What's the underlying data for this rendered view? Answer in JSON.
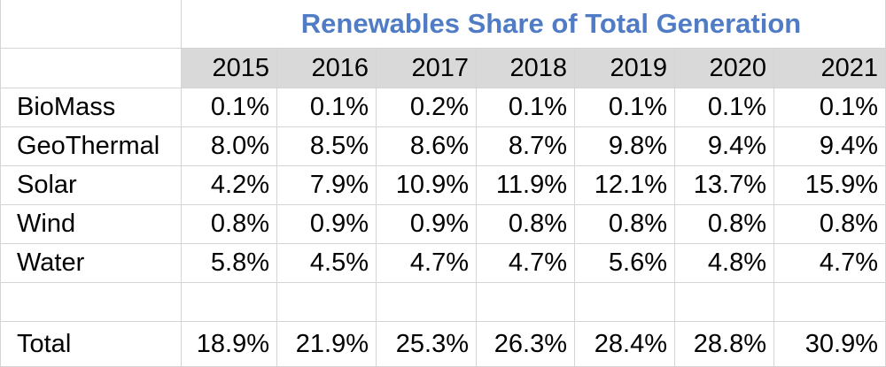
{
  "table": {
    "title": "Renewables Share of Total Generation",
    "columns": [
      "2015",
      "2016",
      "2017",
      "2018",
      "2019",
      "2020",
      "2021"
    ],
    "rows": [
      {
        "label": "BioMass",
        "values": [
          "0.1%",
          "0.1%",
          "0.2%",
          "0.1%",
          "0.1%",
          "0.1%",
          "0.1%"
        ]
      },
      {
        "label": "GeoThermal",
        "values": [
          "8.0%",
          "8.5%",
          "8.6%",
          "8.7%",
          "9.8%",
          "9.4%",
          "9.4%"
        ]
      },
      {
        "label": "Solar",
        "values": [
          "4.2%",
          "7.9%",
          "10.9%",
          "11.9%",
          "12.1%",
          "13.7%",
          "15.9%"
        ]
      },
      {
        "label": "Wind",
        "values": [
          "0.8%",
          "0.9%",
          "0.9%",
          "0.8%",
          "0.8%",
          "0.8%",
          "0.8%"
        ]
      },
      {
        "label": "Water",
        "values": [
          "5.8%",
          "4.5%",
          "4.7%",
          "4.7%",
          "5.6%",
          "4.8%",
          "4.7%"
        ]
      },
      {
        "label": "",
        "values": [
          "",
          "",
          "",
          "",
          "",
          "",
          ""
        ]
      },
      {
        "label": "Total",
        "values": [
          "18.9%",
          "21.9%",
          "25.3%",
          "26.3%",
          "28.4%",
          "28.8%",
          "30.9%"
        ]
      }
    ]
  }
}
